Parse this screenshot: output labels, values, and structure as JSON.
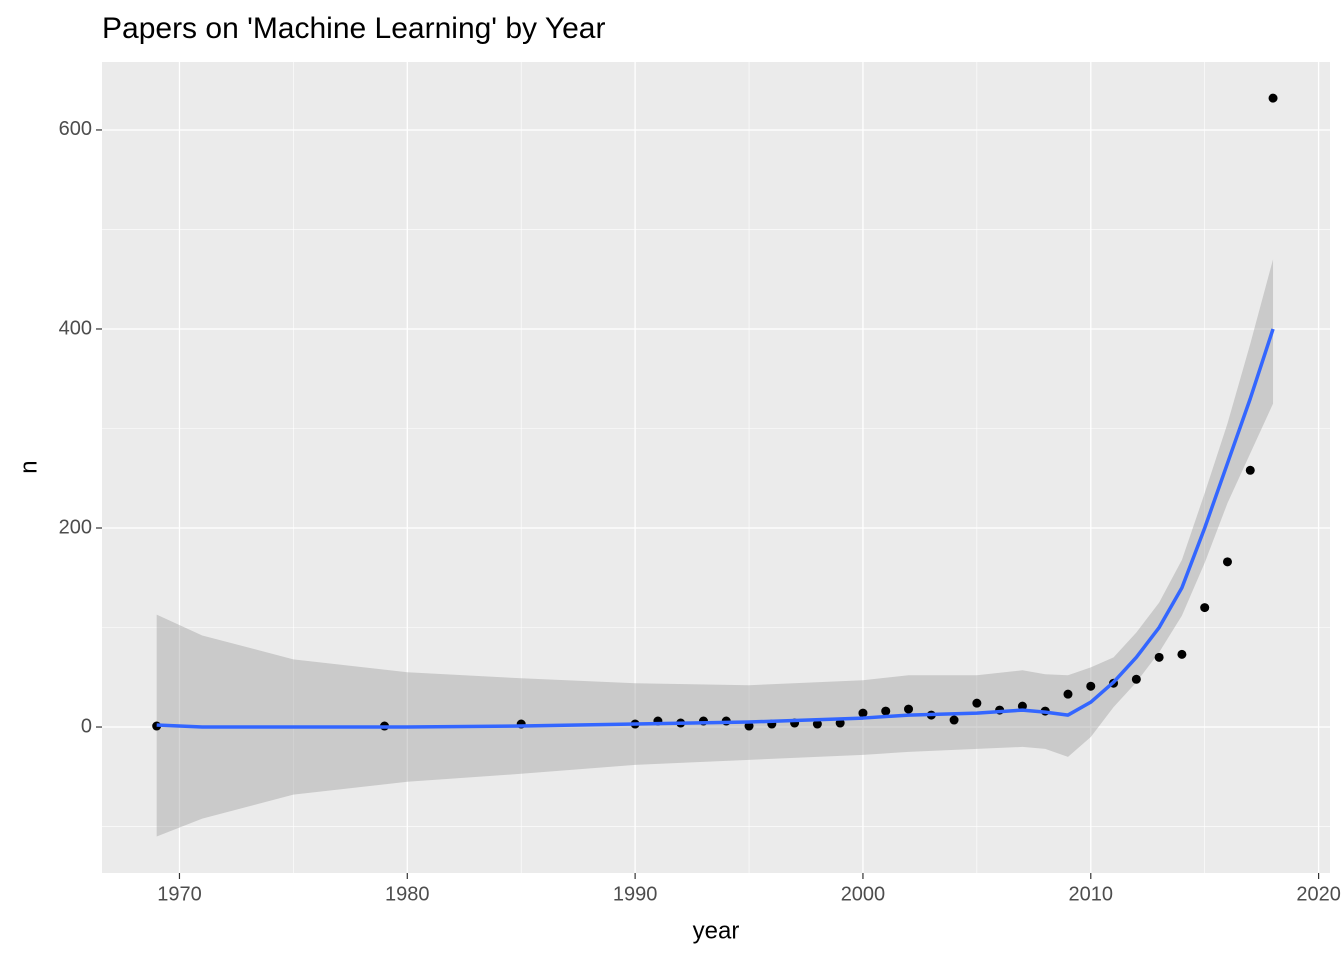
{
  "chart_data": {
    "type": "scatter",
    "title": "Papers on 'Machine Learning' by Year",
    "x_label": "year",
    "y_label": "n",
    "x": [
      1969,
      1979,
      1985,
      1990,
      1991,
      1992,
      1993,
      1994,
      1995,
      1996,
      1997,
      1998,
      1999,
      2000,
      2001,
      2002,
      2003,
      2004,
      2005,
      2006,
      2007,
      2008,
      2009,
      2010,
      2011,
      2012,
      2013,
      2014,
      2015,
      2016,
      2017,
      2018
    ],
    "values": [
      1,
      1,
      3,
      3,
      6,
      4,
      6,
      6,
      1,
      3,
      4,
      3,
      4,
      14,
      16,
      18,
      12,
      7,
      24,
      17,
      21,
      16,
      33,
      41,
      44,
      48,
      70,
      73,
      120,
      166,
      258,
      632
    ],
    "color": "#000000",
    "smooth": {
      "x": [
        1969,
        1971,
        1975,
        1980,
        1985,
        1990,
        1995,
        2000,
        2002,
        2005,
        2007,
        2008,
        2009,
        2010,
        2011,
        2012,
        2013,
        2014,
        2015,
        2016,
        2017,
        2018
      ],
      "values": [
        2,
        0,
        0,
        0,
        1,
        3,
        5,
        9,
        12,
        14,
        17,
        15,
        12,
        25,
        45,
        70,
        100,
        140,
        200,
        265,
        330,
        400
      ],
      "lower": [
        -110,
        -92,
        -68,
        -55,
        -47,
        -38,
        -33,
        -28,
        -25,
        -22,
        -20,
        -22,
        -30,
        -10,
        20,
        45,
        75,
        112,
        165,
        225,
        275,
        325
      ],
      "upper": [
        113,
        92,
        68,
        55,
        49,
        44,
        42,
        47,
        52,
        52,
        57,
        53,
        52,
        60,
        70,
        95,
        125,
        168,
        235,
        305,
        385,
        470
      ],
      "color": "#3366ff",
      "band_color": "#999999"
    },
    "xlim": [
      1966.6,
      2020.5
    ],
    "ylim": [
      -146.7,
      668.3
    ],
    "xticks": [
      1970,
      1980,
      1990,
      2000,
      2010,
      2020
    ],
    "yticks": [
      0,
      200,
      400,
      600
    ],
    "grid": true
  }
}
